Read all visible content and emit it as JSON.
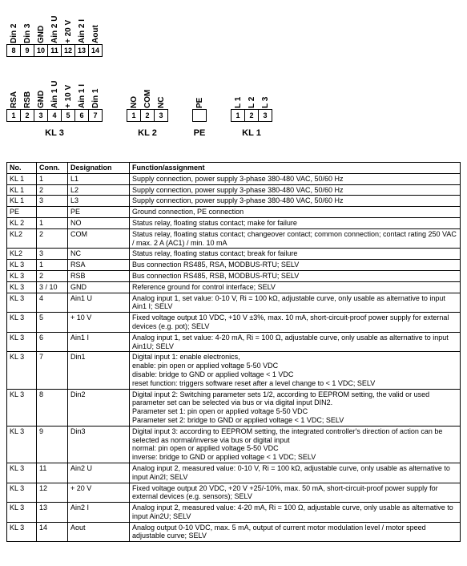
{
  "connectors": {
    "kl3": {
      "label": "KL 3",
      "columns": [
        {
          "top_num": "8",
          "top_name": "Din 2",
          "bot_name": "RSA",
          "bot_num": "1"
        },
        {
          "top_num": "9",
          "top_name": "Din 3",
          "bot_name": "RSB",
          "bot_num": "2"
        },
        {
          "top_num": "10",
          "top_name": "GND",
          "bot_name": "GND",
          "bot_num": "3"
        },
        {
          "top_num": "11",
          "top_name": "Ain 2 U",
          "bot_name": "Ain 1 U",
          "bot_num": "4"
        },
        {
          "top_num": "12",
          "top_name": "+ 20 V",
          "bot_name": "+ 10 V",
          "bot_num": "5"
        },
        {
          "top_num": "13",
          "top_name": "Ain 2 I",
          "bot_name": "Ain 1 I",
          "bot_num": "6"
        },
        {
          "top_num": "14",
          "top_name": "Aout",
          "bot_name": "Din 1",
          "bot_num": "7"
        }
      ]
    },
    "kl2": {
      "label": "KL 2",
      "pins": [
        {
          "num": "1",
          "name": "NO"
        },
        {
          "num": "2",
          "name": "COM"
        },
        {
          "num": "3",
          "name": "NC"
        }
      ]
    },
    "pe": {
      "label": "PE",
      "pins": [
        {
          "num": "",
          "name": "PE"
        }
      ]
    },
    "kl1": {
      "label": "KL 1",
      "pins": [
        {
          "num": "1",
          "name": "L 1"
        },
        {
          "num": "2",
          "name": "L 2"
        },
        {
          "num": "3",
          "name": "L 3"
        }
      ]
    }
  },
  "table": {
    "headers": [
      "No.",
      "Conn.",
      "Designation",
      "Function/assignment"
    ],
    "rows": [
      [
        "KL 1",
        "1",
        "L1",
        "Supply connection, power supply 3-phase 380-480 VAC, 50/60 Hz"
      ],
      [
        "KL 1",
        "2",
        "L2",
        "Supply connection, power supply 3-phase 380-480 VAC, 50/60 Hz"
      ],
      [
        "KL 1",
        "3",
        "L3",
        "Supply connection, power supply 3-phase 380-480 VAC, 50/60 Hz"
      ],
      [
        "PE",
        "",
        "PE",
        "Ground connection, PE connection"
      ],
      [
        "KL 2",
        "1",
        "NO",
        "Status relay, floating status contact; make for failure"
      ],
      [
        "KL2",
        "2",
        "COM",
        "Status relay, floating status contact; changeover contact; common connection; contact rating 250 VAC / max. 2 A (AC1) / min. 10 mA"
      ],
      [
        "KL2",
        "3",
        "NC",
        "Status relay, floating status contact; break for failure"
      ],
      [
        "KL 3",
        "1",
        "RSA",
        "Bus connection RS485, RSA, MODBUS-RTU; SELV"
      ],
      [
        "KL 3",
        "2",
        "RSB",
        "Bus connection RS485, RSB, MODBUS-RTU; SELV"
      ],
      [
        "KL 3",
        "3 / 10",
        "GND",
        "Reference ground for control interface; SELV"
      ],
      [
        "KL 3",
        "4",
        "Ain1 U",
        "Analog input 1, set value: 0-10 V, Ri = 100 kΩ, adjustable curve, only usable as alternative to input Ain1 I; SELV"
      ],
      [
        "KL 3",
        "5",
        "+ 10 V",
        "Fixed voltage output 10 VDC, +10 V ±3%, max. 10 mA, short-circuit-proof power supply for external devices (e.g. pot); SELV"
      ],
      [
        "KL 3",
        "6",
        "Ain1 I",
        "Analog input 1, set value: 4-20 mA, Ri = 100 Ω, adjustable curve, only usable as alternative to input Ain1U; SELV"
      ],
      [
        "KL 3",
        "7",
        "Din1",
        "Digital input 1: enable electronics,\nenable: pin open or applied voltage 5-50 VDC\ndisable: bridge to GND or applied voltage < 1 VDC\nreset function: triggers software reset after a level change to < 1 VDC; SELV"
      ],
      [
        "KL 3",
        "8",
        "Din2",
        "Digital input 2: Switching parameter sets 1/2, according to EEPROM setting, the valid or used parameter set can be selected via bus or via digital input DIN2.\nParameter set 1: pin open or applied voltage 5-50 VDC\nParameter set 2: bridge to GND or applied voltage < 1 VDC; SELV"
      ],
      [
        "KL 3",
        "9",
        "Din3",
        "Digital input 3: according to EEPROM setting, the integrated controller's direction of action can be selected as normal/inverse via bus or digital input\nnormal: pin open or applied voltage 5-50 VDC\ninverse: bridge to GND or applied voltage < 1 VDC; SELV"
      ],
      [
        "KL 3",
        "11",
        "Ain2 U",
        "Analog input 2, measured value: 0-10 V, Ri = 100 kΩ, adjustable curve, only usable as alternative to input Ain2I; SELV"
      ],
      [
        "KL 3",
        "12",
        "+ 20 V",
        "Fixed voltage output 20 VDC, +20 V +25/-10%, max. 50 mA, short-circuit-proof power supply for external devices (e.g. sensors); SELV"
      ],
      [
        "KL 3",
        "13",
        "Ain2 I",
        "Analog input 2, measured value: 4-20 mA, Ri = 100 Ω, adjustable curve, only usable as alternative to input Ain2U; SELV"
      ],
      [
        "KL 3",
        "14",
        "Aout",
        "Analog output 0-10 VDC, max. 5 mA, output of current motor modulation level / motor speed\nadjustable curve; SELV"
      ]
    ]
  }
}
